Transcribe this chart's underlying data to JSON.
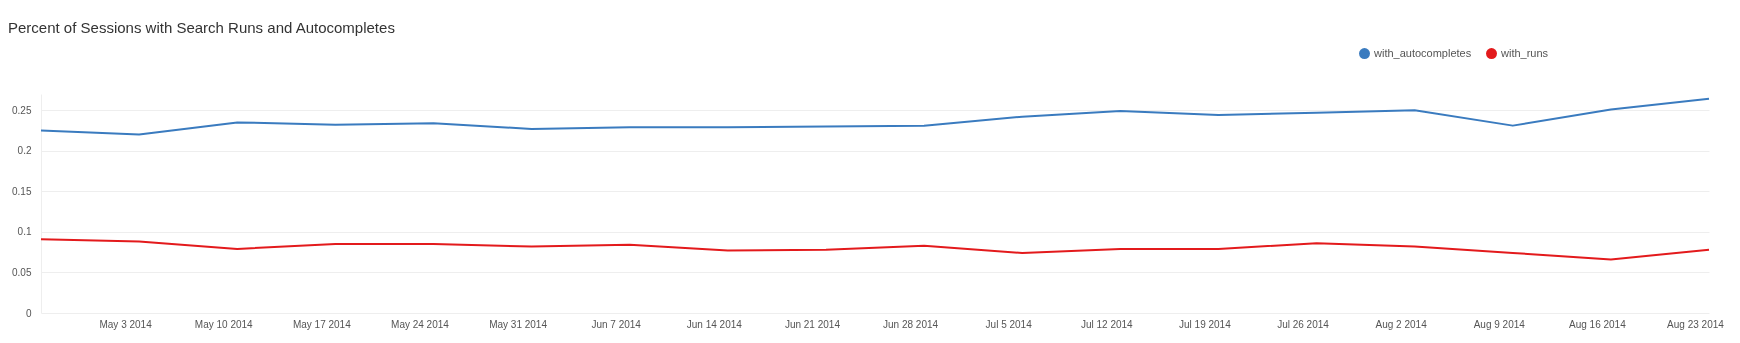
{
  "chart_data": {
    "type": "line",
    "title": "Percent of Sessions with Search Runs and Autocompletes",
    "x": [
      "2014-04-27",
      "2014-05-04",
      "2014-05-11",
      "2014-05-18",
      "2014-05-25",
      "2014-06-01",
      "2014-06-08",
      "2014-06-15",
      "2014-06-22",
      "2014-06-29",
      "2014-07-06",
      "2014-07-13",
      "2014-07-20",
      "2014-07-27",
      "2014-08-03",
      "2014-08-10",
      "2014-08-17",
      "2014-08-24"
    ],
    "series": [
      {
        "name": "with_autocompletes",
        "color": "#3a7bbf",
        "values": [
          0.225,
          0.22,
          0.235,
          0.232,
          0.234,
          0.227,
          0.229,
          0.229,
          0.23,
          0.231,
          0.242,
          0.249,
          0.244,
          0.247,
          0.25,
          0.231,
          0.251,
          0.264
        ]
      },
      {
        "name": "with_runs",
        "color": "#e31a1c",
        "values": [
          0.091,
          0.088,
          0.079,
          0.085,
          0.085,
          0.082,
          0.084,
          0.077,
          0.078,
          0.083,
          0.074,
          0.079,
          0.079,
          0.086,
          0.082,
          0.074,
          0.066,
          0.078
        ]
      }
    ],
    "xlim": [
      "2014-04-27",
      "2014-08-24"
    ],
    "xticks": [
      {
        "value": "2014-05-03",
        "label": "May 3 2014"
      },
      {
        "value": "2014-05-10",
        "label": "May 10 2014"
      },
      {
        "value": "2014-05-17",
        "label": "May 17 2014"
      },
      {
        "value": "2014-05-24",
        "label": "May 24 2014"
      },
      {
        "value": "2014-05-31",
        "label": "May 31 2014"
      },
      {
        "value": "2014-06-07",
        "label": "Jun 7 2014"
      },
      {
        "value": "2014-06-14",
        "label": "Jun 14 2014"
      },
      {
        "value": "2014-06-21",
        "label": "Jun 21 2014"
      },
      {
        "value": "2014-06-28",
        "label": "Jun 28 2014"
      },
      {
        "value": "2014-07-05",
        "label": "Jul 5 2014"
      },
      {
        "value": "2014-07-12",
        "label": "Jul 12 2014"
      },
      {
        "value": "2014-07-19",
        "label": "Jul 19 2014"
      },
      {
        "value": "2014-07-26",
        "label": "Jul 26 2014"
      },
      {
        "value": "2014-08-02",
        "label": "Aug 2 2014"
      },
      {
        "value": "2014-08-09",
        "label": "Aug 9 2014"
      },
      {
        "value": "2014-08-16",
        "label": "Aug 16 2014"
      },
      {
        "value": "2014-08-23",
        "label": "Aug 23 2014"
      }
    ],
    "ylim": [
      0,
      0.27
    ],
    "yticks": [
      0,
      0.05,
      0.1,
      0.15,
      0.2,
      0.25
    ],
    "grid": "y",
    "legend": "top right"
  }
}
